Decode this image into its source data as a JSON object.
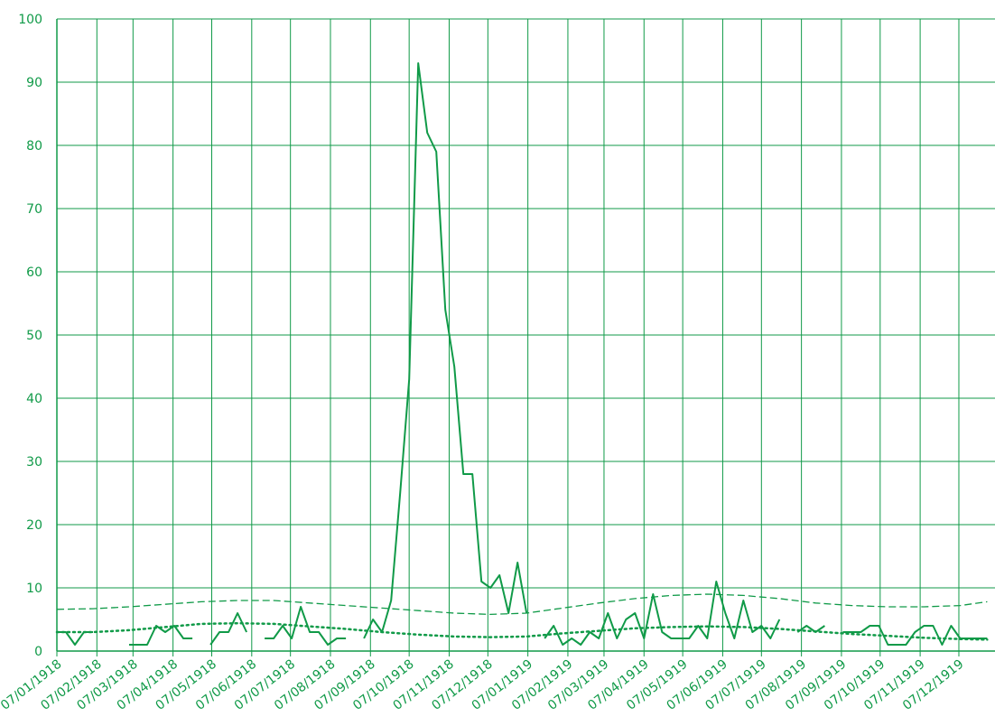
{
  "chart_data": {
    "type": "line",
    "color": "#109a48",
    "grid": true,
    "ylim": [
      0,
      100
    ],
    "yticks": [
      0,
      10,
      20,
      30,
      40,
      50,
      60,
      70,
      80,
      90,
      100
    ],
    "xlim": [
      "07/01/1918",
      "04/01/1920"
    ],
    "xticks": [
      "07/01/1918",
      "07/02/1918",
      "07/03/1918",
      "07/04/1918",
      "07/05/1918",
      "07/06/1918",
      "07/07/1918",
      "07/08/1918",
      "07/09/1918",
      "07/10/1918",
      "07/11/1918",
      "07/12/1918",
      "07/01/1919",
      "07/02/1919",
      "07/03/1919",
      "07/04/1919",
      "07/05/1919",
      "07/06/1919",
      "07/07/1919",
      "07/08/1919",
      "07/09/1919",
      "07/10/1919",
      "07/11/1919",
      "07/12/1919"
    ],
    "series": [
      {
        "color": "#109a48",
        "dash": "solid",
        "x": [
          "07/01/1918",
          "14/01/1918",
          "21/01/1918",
          "28/01/1918",
          "04/02/1918",
          "11/02/1918",
          "18/02/1918",
          "25/02/1918",
          "04/03/1918",
          "11/03/1918",
          "18/03/1918",
          "25/03/1918",
          "01/04/1918",
          "08/04/1918",
          "15/04/1918",
          "22/04/1918",
          "29/04/1918",
          "06/05/1918",
          "13/05/1918",
          "20/05/1918",
          "27/05/1918",
          "03/06/1918",
          "10/06/1918",
          "17/06/1918",
          "24/06/1918",
          "01/07/1918",
          "08/07/1918",
          "15/07/1918",
          "22/07/1918",
          "29/07/1918",
          "05/08/1918",
          "12/08/1918",
          "19/08/1918",
          "26/08/1918",
          "02/09/1918",
          "09/09/1918",
          "16/09/1918",
          "23/09/1918",
          "30/09/1918",
          "07/10/1918",
          "14/10/1918",
          "21/10/1918",
          "28/10/1918",
          "04/11/1918",
          "11/11/1918",
          "18/11/1918",
          "25/11/1918",
          "02/12/1918",
          "09/12/1918",
          "16/12/1918",
          "23/12/1918",
          "30/12/1918",
          "06/01/1919",
          "13/01/1919",
          "20/01/1919",
          "27/01/1919",
          "03/02/1919",
          "10/02/1919",
          "17/02/1919",
          "24/02/1919",
          "03/03/1919",
          "10/03/1919",
          "17/03/1919",
          "24/03/1919",
          "31/03/1919",
          "07/04/1919",
          "14/04/1919",
          "21/04/1919",
          "28/04/1919",
          "05/05/1919",
          "12/05/1919",
          "19/05/1919",
          "26/05/1919",
          "02/06/1919",
          "09/06/1919",
          "16/06/1919",
          "23/06/1919",
          "30/06/1919",
          "07/07/1919",
          "14/07/1919",
          "21/07/1919",
          "28/07/1919",
          "04/08/1919",
          "11/08/1919",
          "18/08/1919",
          "25/08/1919",
          "01/09/1919",
          "08/09/1919",
          "15/09/1919",
          "22/09/1919",
          "29/09/1919",
          "06/10/1919",
          "13/10/1919",
          "20/10/1919",
          "27/10/1919",
          "03/11/1919",
          "10/11/1919",
          "17/11/1919",
          "24/11/1919",
          "01/12/1919",
          "08/12/1919",
          "15/12/1919",
          "22/12/1919",
          "29/12/1919"
        ],
        "values": [
          3,
          3,
          1,
          3,
          3,
          null,
          null,
          null,
          1,
          1,
          1,
          4,
          3,
          4,
          2,
          2,
          null,
          1,
          3,
          3,
          6,
          3,
          null,
          2,
          2,
          4,
          2,
          7,
          3,
          3,
          1,
          2,
          2,
          null,
          2,
          5,
          3,
          8,
          25,
          43,
          93,
          82,
          79,
          54,
          45,
          28,
          28,
          11,
          10,
          12,
          6,
          14,
          6,
          null,
          2,
          4,
          1,
          2,
          1,
          3,
          2,
          6,
          2,
          5,
          6,
          2,
          9,
          3,
          2,
          2,
          2,
          4,
          2,
          11,
          6,
          2,
          8,
          3,
          4,
          2,
          5,
          null,
          3,
          4,
          3,
          4,
          null,
          3,
          3,
          3,
          4,
          4,
          1,
          1,
          1,
          3,
          4,
          4,
          1,
          4,
          2,
          2,
          2,
          2
        ]
      },
      {
        "color": "#109a48",
        "dash": "dashed",
        "x": [
          "07/01/1918",
          "04/02/1918",
          "04/03/1918",
          "01/04/1918",
          "29/04/1918",
          "27/05/1918",
          "24/06/1918",
          "22/07/1918",
          "19/08/1918",
          "16/09/1918",
          "14/10/1918",
          "11/11/1918",
          "09/12/1918",
          "06/01/1919",
          "03/02/1919",
          "03/03/1919",
          "31/03/1919",
          "28/04/1919",
          "26/05/1919",
          "23/06/1919",
          "21/07/1919",
          "18/08/1919",
          "15/09/1919",
          "13/10/1919",
          "10/11/1919",
          "08/12/1919",
          "29/12/1919"
        ],
        "values": [
          6.6,
          6.7,
          7.0,
          7.4,
          7.8,
          8.0,
          8.0,
          7.6,
          7.2,
          6.8,
          6.4,
          6.0,
          5.8,
          6.0,
          6.8,
          7.6,
          8.3,
          8.8,
          9.0,
          8.8,
          8.3,
          7.6,
          7.2,
          7.0,
          7.0,
          7.2,
          7.8
        ]
      },
      {
        "color": "#109a48",
        "dash": "dotted",
        "x": [
          "07/01/1918",
          "04/02/1918",
          "04/03/1918",
          "01/04/1918",
          "29/04/1918",
          "27/05/1918",
          "24/06/1918",
          "22/07/1918",
          "19/08/1918",
          "16/09/1918",
          "14/10/1918",
          "11/11/1918",
          "09/12/1918",
          "06/01/1919",
          "03/02/1919",
          "03/03/1919",
          "31/03/1919",
          "28/04/1919",
          "26/05/1919",
          "23/06/1919",
          "21/07/1919",
          "18/08/1919",
          "15/09/1919",
          "13/10/1919",
          "10/11/1919",
          "08/12/1919",
          "29/12/1919"
        ],
        "values": [
          3.0,
          3.0,
          3.3,
          3.8,
          4.3,
          4.4,
          4.3,
          3.9,
          3.5,
          3.0,
          2.6,
          2.3,
          2.2,
          2.3,
          2.8,
          3.2,
          3.6,
          3.8,
          3.9,
          3.8,
          3.5,
          3.1,
          2.7,
          2.4,
          2.1,
          1.9,
          1.8
        ]
      }
    ]
  }
}
